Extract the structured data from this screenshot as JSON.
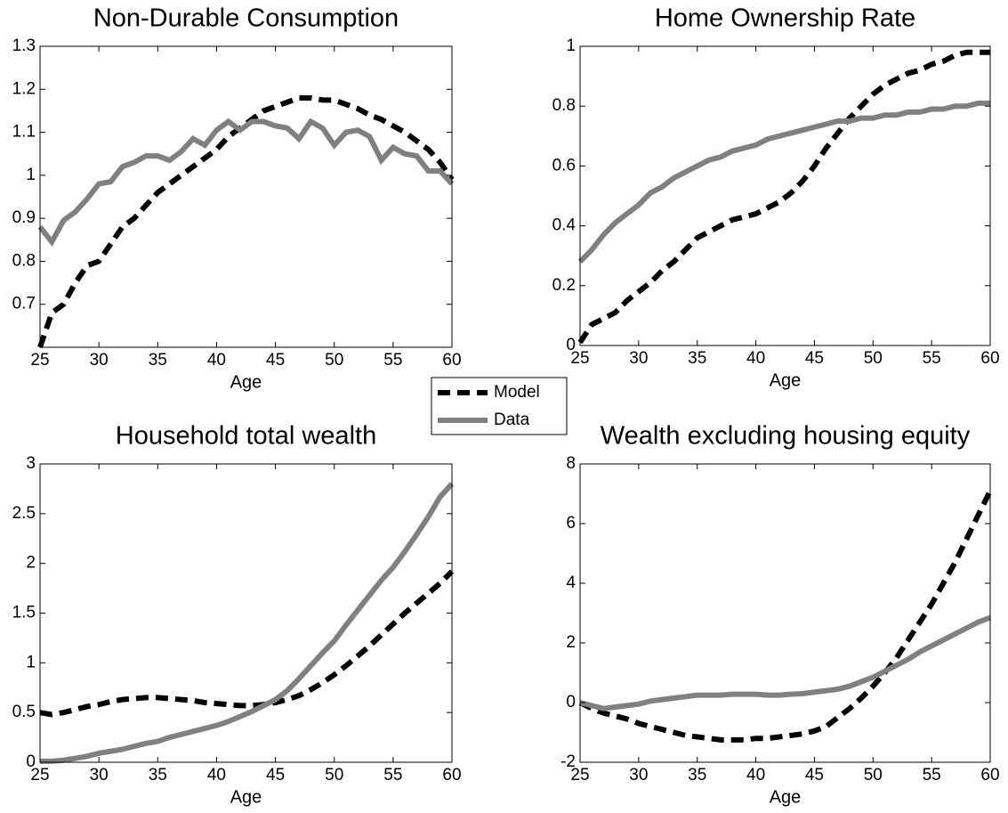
{
  "chart_data": [
    {
      "type": "line",
      "title": "Non-Durable Consumption",
      "xlabel": "Age",
      "x": [
        25,
        26,
        27,
        28,
        29,
        30,
        31,
        32,
        33,
        34,
        35,
        36,
        37,
        38,
        39,
        40,
        41,
        42,
        43,
        44,
        45,
        46,
        47,
        48,
        49,
        50,
        51,
        52,
        53,
        54,
        55,
        56,
        57,
        58,
        59,
        60
      ],
      "series": [
        {
          "name": "Model",
          "color": "#000000",
          "values": [
            0.6,
            0.68,
            0.7,
            0.75,
            0.79,
            0.8,
            0.84,
            0.88,
            0.9,
            0.93,
            0.96,
            0.98,
            1.0,
            1.02,
            1.04,
            1.06,
            1.09,
            1.11,
            1.13,
            1.15,
            1.16,
            1.17,
            1.18,
            1.18,
            1.175,
            1.175,
            1.165,
            1.155,
            1.14,
            1.13,
            1.115,
            1.1,
            1.08,
            1.06,
            1.03,
            0.99
          ]
        },
        {
          "name": "Data",
          "color": "#808080",
          "values": [
            0.88,
            0.845,
            0.895,
            0.915,
            0.945,
            0.98,
            0.985,
            1.02,
            1.03,
            1.045,
            1.045,
            1.035,
            1.055,
            1.085,
            1.07,
            1.105,
            1.125,
            1.105,
            1.125,
            1.125,
            1.115,
            1.11,
            1.085,
            1.125,
            1.11,
            1.07,
            1.1,
            1.105,
            1.09,
            1.035,
            1.065,
            1.05,
            1.045,
            1.01,
            1.01,
            0.98
          ]
        }
      ],
      "xlim": [
        25,
        60
      ],
      "xticks": [
        25,
        30,
        35,
        40,
        45,
        50,
        55,
        60
      ],
      "ylim": [
        0.6,
        1.3
      ],
      "yticks": [
        0.7,
        0.8,
        0.9,
        1,
        1.1,
        1.2,
        1.3
      ]
    },
    {
      "type": "line",
      "title": "Home Ownership Rate",
      "xlabel": "Age",
      "x": [
        25,
        26,
        27,
        28,
        29,
        30,
        31,
        32,
        33,
        34,
        35,
        36,
        37,
        38,
        39,
        40,
        41,
        42,
        43,
        44,
        45,
        46,
        47,
        48,
        49,
        50,
        51,
        52,
        53,
        54,
        55,
        56,
        57,
        58,
        59,
        60
      ],
      "series": [
        {
          "name": "Model",
          "color": "#000000",
          "values": [
            0.01,
            0.07,
            0.09,
            0.11,
            0.15,
            0.18,
            0.21,
            0.25,
            0.28,
            0.32,
            0.36,
            0.38,
            0.4,
            0.42,
            0.43,
            0.44,
            0.46,
            0.48,
            0.51,
            0.55,
            0.6,
            0.66,
            0.71,
            0.76,
            0.8,
            0.84,
            0.87,
            0.89,
            0.91,
            0.92,
            0.94,
            0.95,
            0.97,
            0.98,
            0.98,
            0.98
          ]
        },
        {
          "name": "Data",
          "color": "#808080",
          "values": [
            0.28,
            0.32,
            0.37,
            0.41,
            0.44,
            0.47,
            0.51,
            0.53,
            0.56,
            0.58,
            0.6,
            0.62,
            0.63,
            0.65,
            0.66,
            0.67,
            0.69,
            0.7,
            0.71,
            0.72,
            0.73,
            0.74,
            0.75,
            0.75,
            0.76,
            0.76,
            0.77,
            0.77,
            0.78,
            0.78,
            0.79,
            0.79,
            0.8,
            0.8,
            0.81,
            0.81
          ]
        }
      ],
      "xlim": [
        25,
        60
      ],
      "xticks": [
        25,
        30,
        35,
        40,
        45,
        50,
        55,
        60
      ],
      "ylim": [
        0,
        1
      ],
      "yticks": [
        0,
        0.2,
        0.4,
        0.6,
        0.8,
        1
      ]
    },
    {
      "type": "line",
      "title": "Household total wealth",
      "xlabel": "Age",
      "x": [
        25,
        26,
        27,
        28,
        29,
        30,
        31,
        32,
        33,
        34,
        35,
        36,
        37,
        38,
        39,
        40,
        41,
        42,
        43,
        44,
        45,
        46,
        47,
        48,
        49,
        50,
        51,
        52,
        53,
        54,
        55,
        56,
        57,
        58,
        59,
        60
      ],
      "series": [
        {
          "name": "Model",
          "color": "#000000",
          "values": [
            0.5,
            0.48,
            0.5,
            0.53,
            0.56,
            0.58,
            0.61,
            0.63,
            0.64,
            0.65,
            0.65,
            0.64,
            0.63,
            0.62,
            0.6,
            0.59,
            0.58,
            0.57,
            0.57,
            0.58,
            0.6,
            0.63,
            0.67,
            0.73,
            0.8,
            0.88,
            0.97,
            1.07,
            1.17,
            1.28,
            1.39,
            1.5,
            1.6,
            1.7,
            1.8,
            1.92
          ]
        },
        {
          "name": "Data",
          "color": "#808080",
          "values": [
            0.01,
            0.01,
            0.02,
            0.04,
            0.06,
            0.09,
            0.11,
            0.13,
            0.16,
            0.19,
            0.21,
            0.25,
            0.28,
            0.31,
            0.34,
            0.37,
            0.41,
            0.46,
            0.51,
            0.57,
            0.63,
            0.72,
            0.84,
            0.97,
            1.1,
            1.22,
            1.38,
            1.53,
            1.68,
            1.83,
            1.96,
            2.12,
            2.29,
            2.47,
            2.67,
            2.8
          ]
        }
      ],
      "xlim": [
        25,
        60
      ],
      "xticks": [
        25,
        30,
        35,
        40,
        45,
        50,
        55,
        60
      ],
      "ylim": [
        0,
        3
      ],
      "yticks": [
        0,
        0.5,
        1,
        1.5,
        2,
        2.5,
        3
      ]
    },
    {
      "type": "line",
      "title": "Wealth excluding housing equity",
      "xlabel": "Age",
      "x": [
        25,
        26,
        27,
        28,
        29,
        30,
        31,
        32,
        33,
        34,
        35,
        36,
        37,
        38,
        39,
        40,
        41,
        42,
        43,
        44,
        45,
        46,
        47,
        48,
        49,
        50,
        51,
        52,
        53,
        54,
        55,
        56,
        57,
        58,
        59,
        60
      ],
      "series": [
        {
          "name": "Model",
          "color": "#000000",
          "values": [
            0,
            -0.2,
            -0.35,
            -0.45,
            -0.55,
            -0.7,
            -0.8,
            -0.9,
            -1.0,
            -1.1,
            -1.15,
            -1.2,
            -1.25,
            -1.25,
            -1.25,
            -1.2,
            -1.2,
            -1.15,
            -1.1,
            -1.05,
            -0.95,
            -0.8,
            -0.5,
            -0.2,
            0.15,
            0.55,
            1.0,
            1.5,
            2.1,
            2.7,
            3.3,
            4.0,
            4.7,
            5.5,
            6.3,
            7.1
          ]
        },
        {
          "name": "Data",
          "color": "#808080",
          "values": [
            0,
            -0.1,
            -0.2,
            -0.15,
            -0.1,
            -0.05,
            0.05,
            0.1,
            0.15,
            0.2,
            0.25,
            0.25,
            0.25,
            0.28,
            0.28,
            0.28,
            0.25,
            0.25,
            0.28,
            0.3,
            0.35,
            0.4,
            0.45,
            0.55,
            0.7,
            0.85,
            1.05,
            1.25,
            1.45,
            1.7,
            1.9,
            2.1,
            2.3,
            2.5,
            2.7,
            2.85
          ]
        }
      ],
      "xlim": [
        25,
        60
      ],
      "xticks": [
        25,
        30,
        35,
        40,
        45,
        50,
        55,
        60
      ],
      "ylim": [
        -2,
        8
      ],
      "yticks": [
        -2,
        0,
        2,
        4,
        6,
        8
      ]
    }
  ]
}
